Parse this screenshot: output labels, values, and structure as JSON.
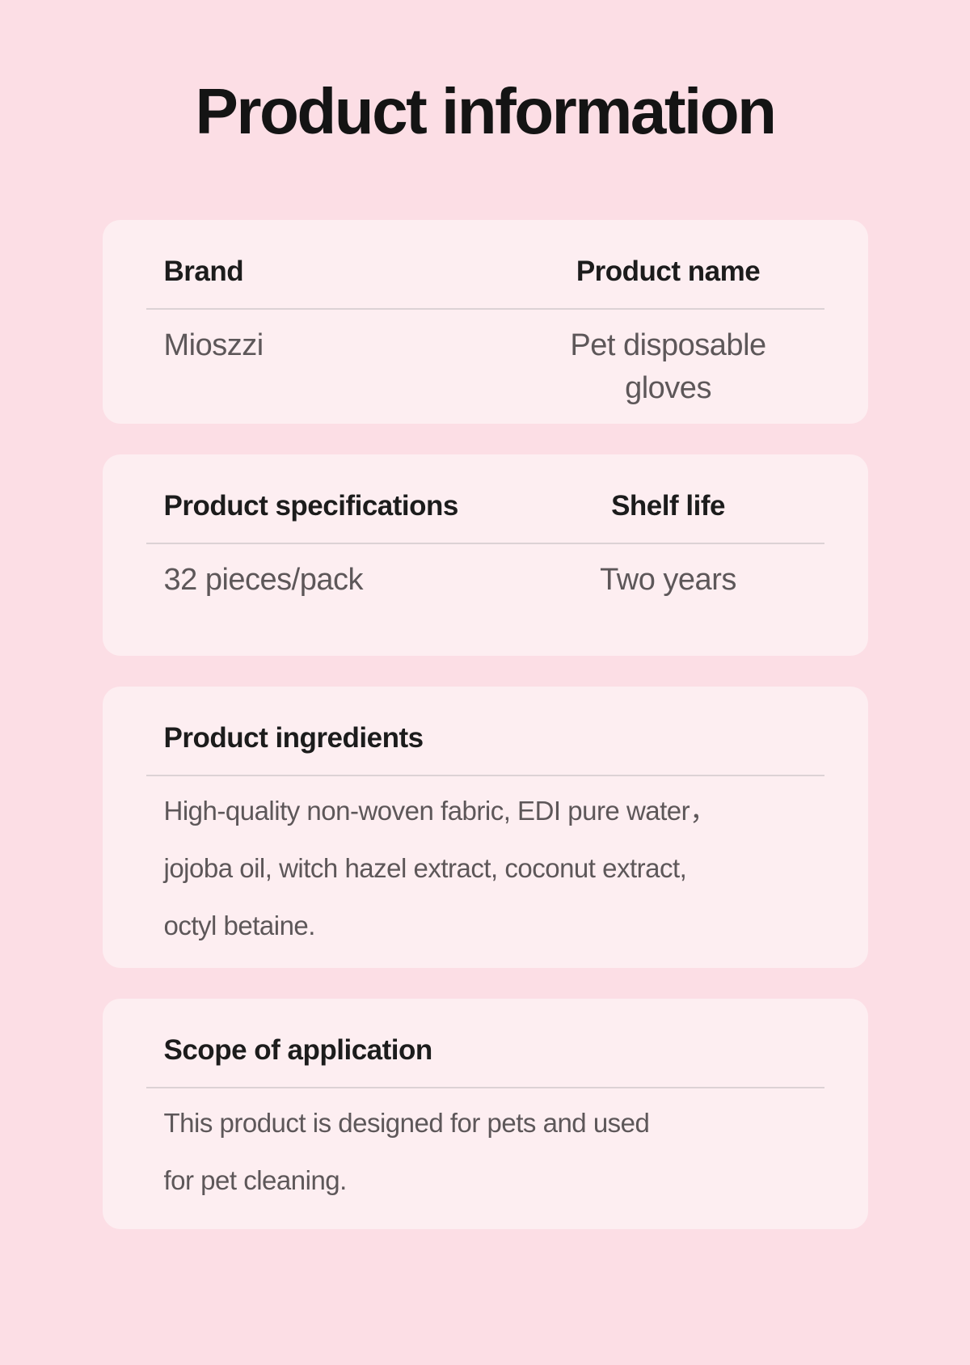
{
  "page": {
    "title": "Product information"
  },
  "theme": {
    "page_bg": "#fcdee5",
    "card_bg": "#fdeef1",
    "heading_color": "#1c1c1c",
    "value_color": "#5d5759",
    "divider_color": "#dcd2d5"
  },
  "cards": {
    "brand_product": {
      "col1_label": "Brand",
      "col1_value": "Mioszzi",
      "col2_label": "Product name",
      "col2_value": "Pet disposable\ngloves"
    },
    "spec_shelf": {
      "col1_label": "Product specifications",
      "col1_value": "32 pieces/pack",
      "col2_label": "Shelf life",
      "col2_value": "Two years"
    },
    "ingredients": {
      "label": "Product ingredients",
      "value": "High-quality non-woven fabric, EDI pure water，\njojoba oil, witch hazel extract, coconut extract,\noctyl betaine."
    },
    "scope": {
      "label": "Scope of application",
      "value": "This product is designed for pets and used\nfor pet cleaning."
    }
  }
}
